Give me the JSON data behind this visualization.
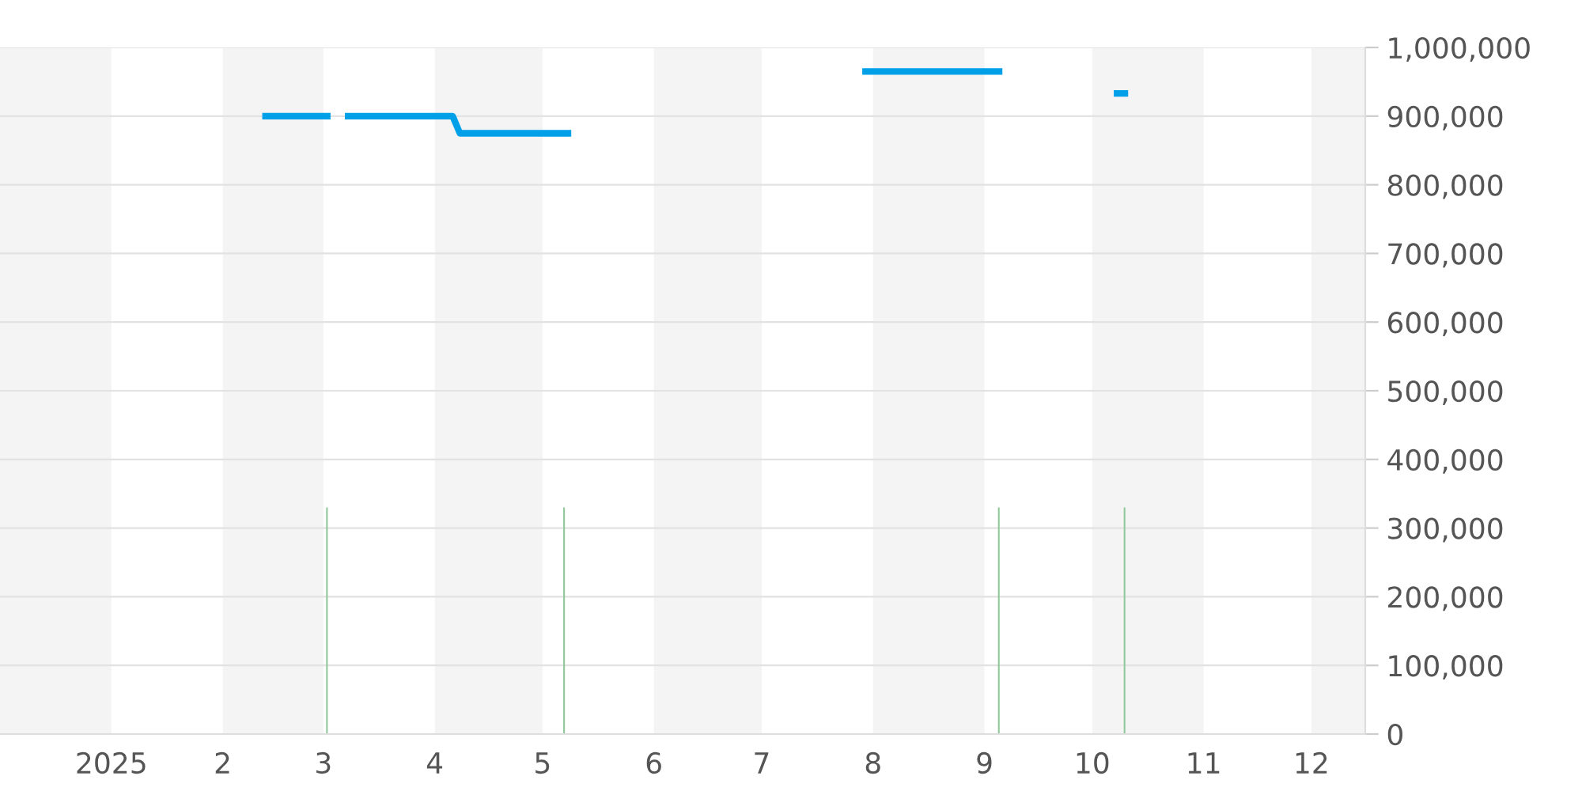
{
  "chart_data": {
    "type": "line",
    "xlim": [
      "2024-12-01",
      "2025-12-16"
    ],
    "xticks": [
      {
        "value": "2025-01-01",
        "label": "2025"
      },
      {
        "value": "2025-02-01",
        "label": "2"
      },
      {
        "value": "2025-03-01",
        "label": "3"
      },
      {
        "value": "2025-04-01",
        "label": "4"
      },
      {
        "value": "2025-05-01",
        "label": "5"
      },
      {
        "value": "2025-06-01",
        "label": "6"
      },
      {
        "value": "2025-07-01",
        "label": "7"
      },
      {
        "value": "2025-08-01",
        "label": "8"
      },
      {
        "value": "2025-09-01",
        "label": "9"
      },
      {
        "value": "2025-10-01",
        "label": "10"
      },
      {
        "value": "2025-11-01",
        "label": "11"
      },
      {
        "value": "2025-12-01",
        "label": "12"
      }
    ],
    "ylim": [
      0,
      1000000
    ],
    "yticks": [
      {
        "value": 0,
        "label": "0"
      },
      {
        "value": 100000,
        "label": "100,000"
      },
      {
        "value": 200000,
        "label": "200,000"
      },
      {
        "value": 300000,
        "label": "300,000"
      },
      {
        "value": 400000,
        "label": "400,000"
      },
      {
        "value": 500000,
        "label": "500,000"
      },
      {
        "value": 600000,
        "label": "600,000"
      },
      {
        "value": 700000,
        "label": "700,000"
      },
      {
        "value": 800000,
        "label": "800,000"
      },
      {
        "value": 900000,
        "label": "900,000"
      },
      {
        "value": 1000000,
        "label": "1,000,000"
      }
    ],
    "grid": "y",
    "legend": false,
    "bands": [
      {
        "axis": "x",
        "from": "2024-12-01",
        "to": "2025-01-01",
        "color": "#f4f4f4"
      },
      {
        "axis": "x",
        "from": "2025-02-01",
        "to": "2025-03-01",
        "color": "#f4f4f4"
      },
      {
        "axis": "x",
        "from": "2025-04-01",
        "to": "2025-05-01",
        "color": "#f4f4f4"
      },
      {
        "axis": "x",
        "from": "2025-06-01",
        "to": "2025-07-01",
        "color": "#f4f4f4"
      },
      {
        "axis": "x",
        "from": "2025-08-01",
        "to": "2025-09-01",
        "color": "#f4f4f4"
      },
      {
        "axis": "x",
        "from": "2025-10-01",
        "to": "2025-11-01",
        "color": "#f4f4f4"
      },
      {
        "axis": "x",
        "from": "2025-12-01",
        "to": "2025-12-16",
        "color": "#f4f4f4"
      }
    ],
    "series": [
      {
        "color": "#00a0e9",
        "x": [
          "2025-02-12",
          "2025-03-03",
          "2025-03-05",
          "2025-03-07",
          "2025-04-06",
          "2025-04-08",
          "2025-05-09",
          "2025-05-10",
          "2025-07-29",
          "2025-09-06",
          "2025-09-08",
          "2025-10-07",
          "2025-10-11"
        ],
        "values": [
          900000,
          900000,
          null,
          900000,
          900000,
          875000,
          875000,
          null,
          965000,
          965000,
          null,
          933000,
          933000
        ]
      },
      {
        "type": "bar",
        "color": "#8fc79a",
        "x": [
          "2025-03-02",
          "2025-05-07",
          "2025-09-05",
          "2025-10-10"
        ],
        "values": [
          330000,
          330000,
          330000,
          330000
        ]
      }
    ]
  }
}
